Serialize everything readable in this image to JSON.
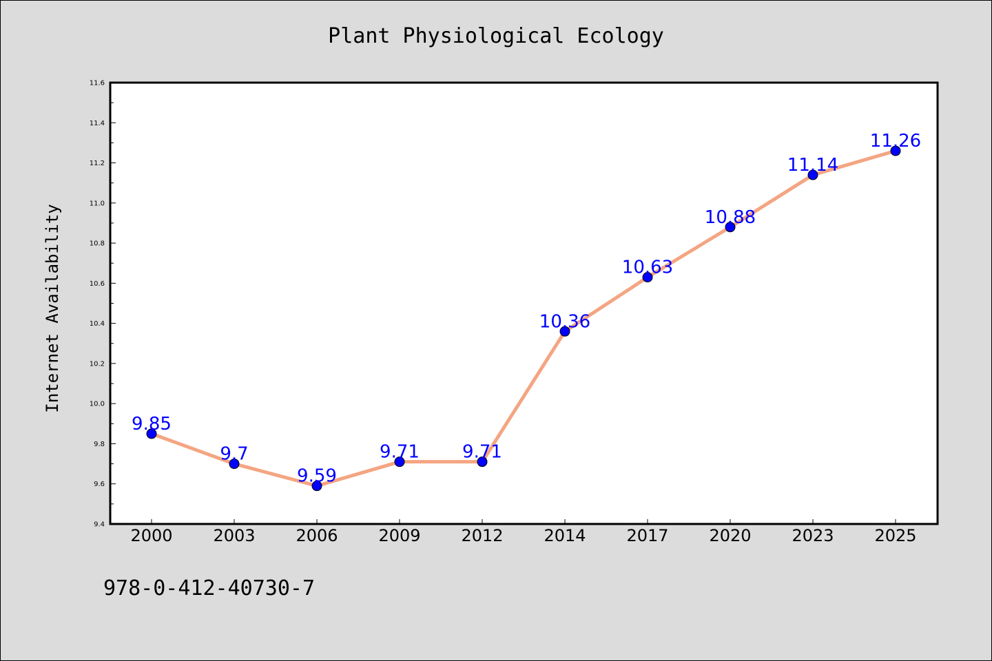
{
  "chart_data": {
    "type": "line",
    "title": "Plant Physiological Ecology",
    "ylabel": "Internet Availability",
    "xlabel": "",
    "categories": [
      "2000",
      "2003",
      "2006",
      "2009",
      "2012",
      "2014",
      "2017",
      "2020",
      "2023",
      "2025"
    ],
    "values": [
      9.85,
      9.7,
      9.59,
      9.71,
      9.71,
      10.36,
      10.63,
      10.88,
      11.14,
      11.26
    ],
    "data_labels": [
      "9.85",
      "9.7",
      "9.59",
      "9.71",
      "9.71",
      "10.36",
      "10.63",
      "10.88",
      "11.14",
      "11.26"
    ],
    "ylim": [
      9.4,
      11.6
    ],
    "yticks": [
      "9.4",
      "9.6",
      "9.8",
      "10.0",
      "10.2",
      "10.4",
      "10.6",
      "10.8",
      "11.0",
      "11.2",
      "11.4",
      "11.6"
    ],
    "grid": false,
    "legend": "none",
    "colors": {
      "line": "#f4a582",
      "marker": "#0000ff",
      "label": "#0000ff",
      "plot_background": "#ffffff",
      "page_background": "#dcdcdc"
    }
  },
  "footer": {
    "isbn": "978-0-412-40730-7"
  }
}
